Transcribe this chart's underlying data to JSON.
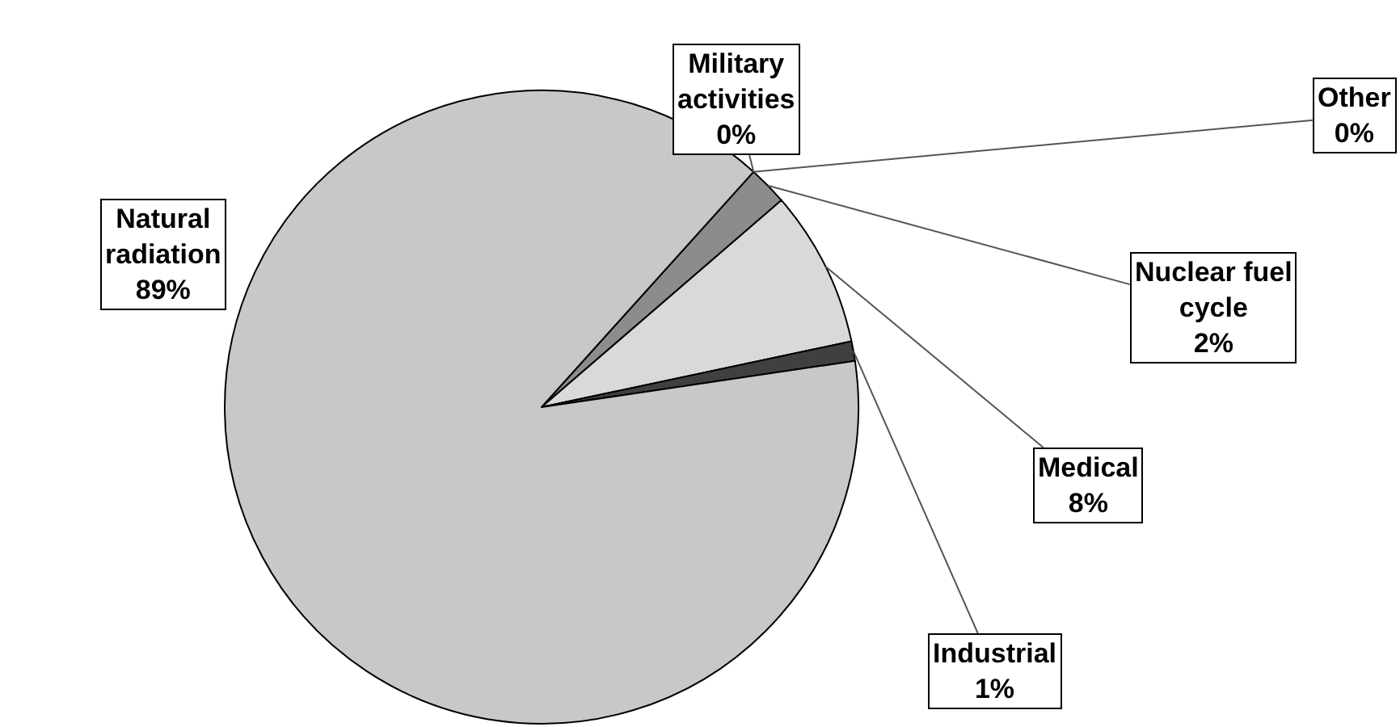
{
  "chart_data": {
    "type": "pie",
    "categories": [
      "Military activities",
      "Other",
      "Nuclear fuel cycle",
      "Medical",
      "Industrial",
      "Natural radiation"
    ],
    "values": [
      0,
      0,
      2,
      8,
      1,
      89
    ],
    "value_labels": [
      "0%",
      "0%",
      "2%",
      "8%",
      "1%",
      "89%"
    ],
    "colors": [
      "#333333",
      "#1a1a1a",
      "#8c8c8c",
      "#d9d9d9",
      "#404040",
      "#c8c8c8"
    ]
  }
}
